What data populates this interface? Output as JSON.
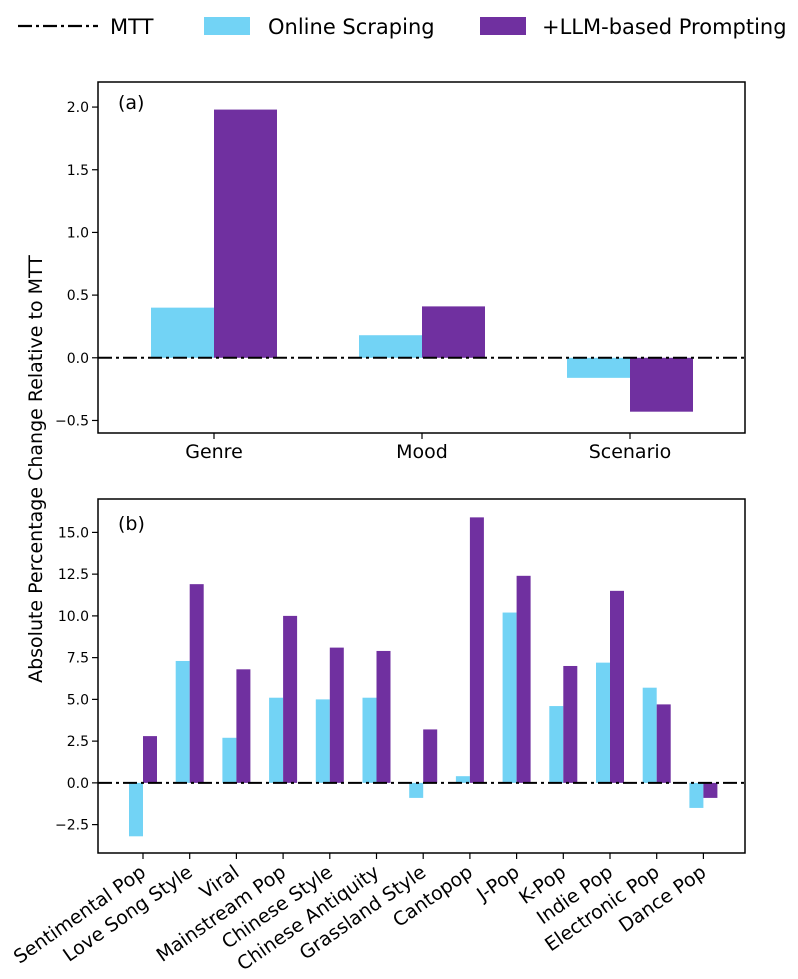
{
  "legend": {
    "mtt": "MTT",
    "online": "Online Scraping",
    "llm": "+LLM-based Prompting"
  },
  "colors": {
    "online": "#72d3f5",
    "llm": "#7030a0",
    "axis": "#000000"
  },
  "ylabel": "Absolute Percentage Change Relative to MTT",
  "chart_data": [
    {
      "type": "bar",
      "panel_label": "(a)",
      "categories": [
        "Genre",
        "Mood",
        "Scenario"
      ],
      "series": [
        {
          "name": "Online Scraping",
          "values": [
            0.4,
            0.18,
            -0.16
          ]
        },
        {
          "name": "+LLM-based Prompting",
          "values": [
            1.98,
            0.41,
            -0.43
          ]
        }
      ],
      "reference_line": {
        "name": "MTT",
        "value": 0.0
      },
      "ylim": [
        -0.6,
        2.2
      ],
      "yticks": [
        -0.5,
        0.0,
        0.5,
        1.0,
        1.5,
        2.0
      ],
      "ytick_labels": [
        "−0.5",
        "0.0",
        "0.5",
        "1.0",
        "1.5",
        "2.0"
      ]
    },
    {
      "type": "bar",
      "panel_label": "(b)",
      "categories": [
        "Sentimental Pop",
        "Love Song Style",
        "Viral",
        "Mainstream Pop",
        "Chinese Style",
        "Chinese Antiquity",
        "Grassland Style",
        "Cantopop",
        "J-Pop",
        "K-Pop",
        "Indie Pop",
        "Electronic Pop",
        "Dance Pop"
      ],
      "series": [
        {
          "name": "Online Scraping",
          "values": [
            -3.2,
            7.3,
            2.7,
            5.1,
            5.0,
            5.1,
            -0.9,
            0.4,
            10.2,
            4.6,
            7.2,
            5.7,
            -1.5
          ]
        },
        {
          "name": "+LLM-based Prompting",
          "values": [
            2.8,
            11.9,
            6.8,
            10.0,
            8.1,
            7.9,
            3.2,
            15.9,
            12.4,
            7.0,
            11.5,
            4.7,
            -0.9
          ]
        }
      ],
      "reference_line": {
        "name": "MTT",
        "value": 0.0
      },
      "ylim": [
        -4.2,
        17.0
      ],
      "yticks": [
        -2.5,
        0.0,
        2.5,
        5.0,
        7.5,
        10.0,
        12.5,
        15.0
      ],
      "ytick_labels": [
        "−2.5",
        "0.0",
        "2.5",
        "5.0",
        "7.5",
        "10.0",
        "12.5",
        "15.0"
      ]
    }
  ]
}
